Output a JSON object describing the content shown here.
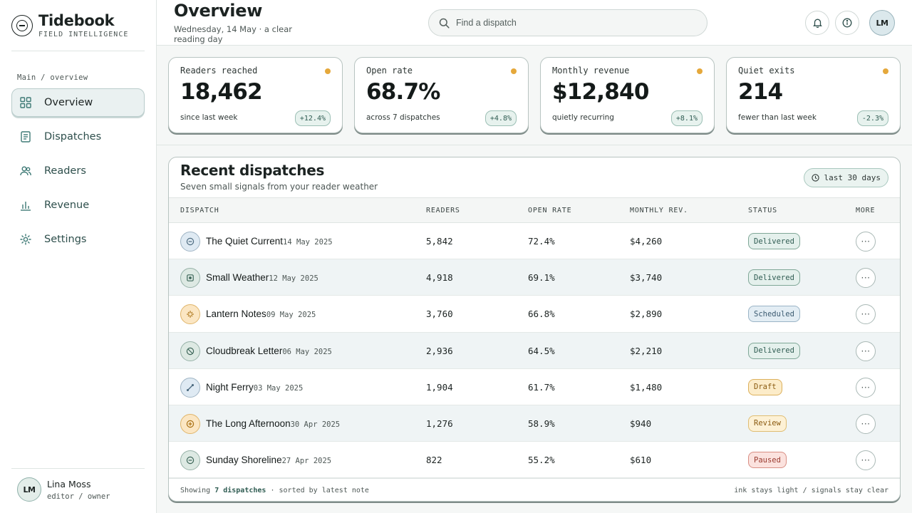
{
  "brand": {
    "name": "Tidebook",
    "tagline": "FIELD INTELLIGENCE"
  },
  "sidebar": {
    "section_label": "Main / overview",
    "items": [
      {
        "label": "Overview",
        "icon": "grid-icon",
        "active": true
      },
      {
        "label": "Dispatches",
        "icon": "document-icon",
        "active": false
      },
      {
        "label": "Readers",
        "icon": "users-icon",
        "active": false
      },
      {
        "label": "Revenue",
        "icon": "bar-chart-icon",
        "active": false
      },
      {
        "label": "Settings",
        "icon": "gear-icon",
        "active": false
      }
    ],
    "user": {
      "initials": "LM",
      "name": "Lina Moss",
      "role": "editor / owner"
    }
  },
  "header": {
    "title": "Overview",
    "subtitle": "Wednesday, 14 May · a clear reading day",
    "search_placeholder": "Find a dispatch",
    "avatar_initials": "LM"
  },
  "stats": [
    {
      "label": "Readers reached",
      "value": "18,462",
      "note": "since last week",
      "delta": "+12.4%"
    },
    {
      "label": "Open rate",
      "value": "68.7%",
      "note": "across 7 dispatches",
      "delta": "+4.8%"
    },
    {
      "label": "Monthly revenue",
      "value": "$12,840",
      "note": "quietly recurring",
      "delta": "+8.1%"
    },
    {
      "label": "Quiet exits",
      "value": "214",
      "note": "fewer than last week",
      "delta": "-2.3%"
    }
  ],
  "table": {
    "title": "Recent dispatches",
    "subtitle": "Seven small signals from your reader weather",
    "range_label": "last 30 days",
    "columns": [
      "DISPATCH",
      "READERS",
      "OPEN RATE",
      "MONTHLY REV.",
      "STATUS",
      "MORE"
    ],
    "rows": [
      {
        "title": "The Quiet Current",
        "date": "14 May 2025",
        "readers": "5,842",
        "open_rate": "72.4%",
        "revenue": "$4,260",
        "status": "Delivered",
        "icon": "minus-circle-icon",
        "tone": "blue"
      },
      {
        "title": "Small Weather",
        "date": "12 May 2025",
        "readers": "4,918",
        "open_rate": "69.1%",
        "revenue": "$3,740",
        "status": "Delivered",
        "icon": "dot-square-icon",
        "tone": "green"
      },
      {
        "title": "Lantern Notes",
        "date": "09 May 2025",
        "readers": "3,760",
        "open_rate": "66.8%",
        "revenue": "$2,890",
        "status": "Scheduled",
        "icon": "sparkle-icon",
        "tone": "amber"
      },
      {
        "title": "Cloudbreak Letter",
        "date": "06 May 2025",
        "readers": "2,936",
        "open_rate": "64.5%",
        "revenue": "$2,210",
        "status": "Delivered",
        "icon": "slash-circle-icon",
        "tone": "green"
      },
      {
        "title": "Night Ferry",
        "date": "03 May 2025",
        "readers": "1,904",
        "open_rate": "61.7%",
        "revenue": "$1,480",
        "status": "Draft",
        "icon": "arrow-diagonal-icon",
        "tone": "blue"
      },
      {
        "title": "The Long Afternoon",
        "date": "30 Apr 2025",
        "readers": "1,276",
        "open_rate": "58.9%",
        "revenue": "$940",
        "status": "Review",
        "icon": "plus-circle-icon",
        "tone": "amber"
      },
      {
        "title": "Sunday Shoreline",
        "date": "27 Apr 2025",
        "readers": "822",
        "open_rate": "55.2%",
        "revenue": "$610",
        "status": "Paused",
        "icon": "minus-circle-icon",
        "tone": "green"
      }
    ],
    "footer_prefix": "Showing",
    "footer_count": "7 dispatches",
    "footer_suffix": "· sorted by latest note",
    "footer_right": "ink stays light / signals stay clear"
  }
}
